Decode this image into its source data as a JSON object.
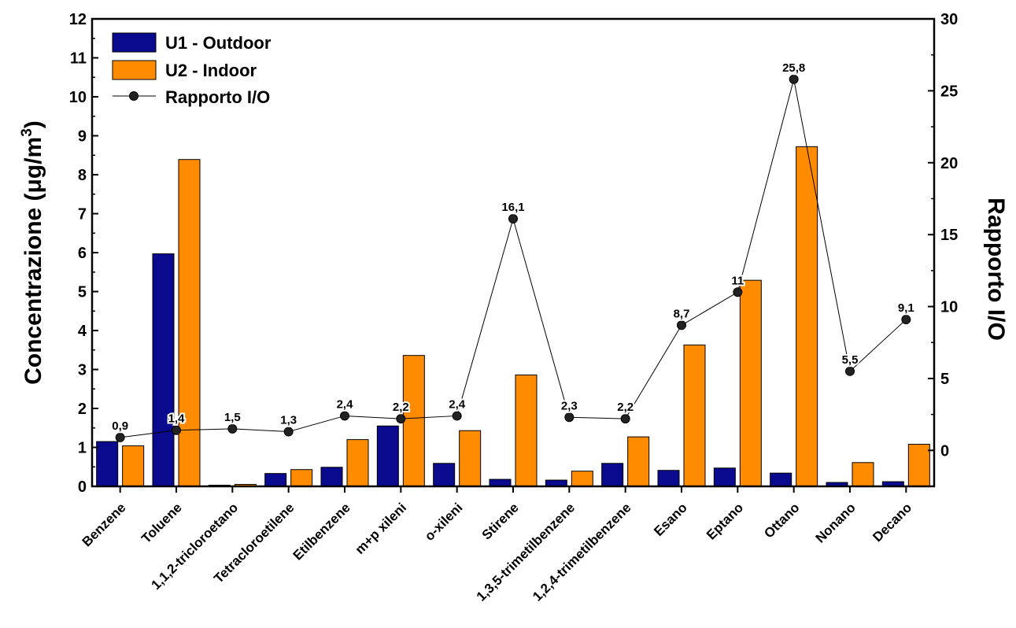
{
  "chart_data": {
    "type": "bar",
    "categories": [
      "Benzene",
      "Toluene",
      "1,1,2-tricloroetano",
      "Tetracloroetilene",
      "Etilbenzene",
      "m+p xileni",
      "o-xileni",
      "Stirene",
      "1,3,5-trimetilbenzene",
      "1,2,4-trimetilbenzene",
      "Esano",
      "Eptano",
      "Ottano",
      "Nonano",
      "Decano"
    ],
    "series": [
      {
        "name": "U1 - Outdoor",
        "color": "#0a0a8f",
        "axis": "left",
        "values": [
          1.15,
          5.97,
          0.03,
          0.33,
          0.49,
          1.55,
          0.59,
          0.18,
          0.16,
          0.59,
          0.41,
          0.47,
          0.34,
          0.1,
          0.12
        ]
      },
      {
        "name": "U2 - Indoor",
        "color": "#ff8c00",
        "axis": "left",
        "values": [
          1.04,
          8.39,
          0.05,
          0.43,
          1.2,
          3.36,
          1.43,
          2.86,
          0.39,
          1.27,
          3.63,
          5.29,
          8.72,
          0.61,
          1.08
        ]
      },
      {
        "name": "Rapporto I/O",
        "type": "line",
        "color": "#000000",
        "axis": "right",
        "values": [
          0.9,
          1.4,
          1.5,
          1.3,
          2.4,
          2.2,
          2.4,
          16.1,
          2.3,
          2.2,
          8.7,
          11,
          25.8,
          5.5,
          9.1
        ],
        "data_labels": [
          "0,9",
          "1,4",
          "1,5",
          "1,3",
          "2,4",
          "2,2",
          "2,4",
          "16,1",
          "2,3",
          "2,2",
          "8,7",
          "11",
          "25,8",
          "5,5",
          "9,1"
        ]
      }
    ],
    "ylabel": "Concentrazione (μg/m",
    "ylabel_sup": "3",
    "ylabel_close": ")",
    "y2label": "Rapporto I/O",
    "ylim": [
      0,
      12
    ],
    "y2lim": [
      -2.5,
      30
    ],
    "yticks": [
      "0",
      "1",
      "2",
      "3",
      "4",
      "5",
      "6",
      "7",
      "8",
      "9",
      "10",
      "11",
      "12"
    ],
    "y2ticks": [
      "0",
      "5",
      "10",
      "15",
      "20",
      "25",
      "30"
    ],
    "legend": {
      "position": "top-left"
    },
    "grid": false
  }
}
